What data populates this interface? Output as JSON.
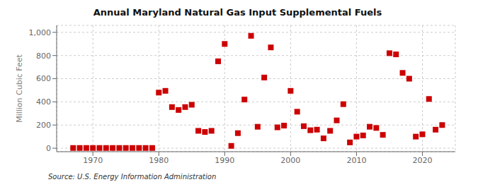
{
  "chart_data": {
    "type": "scatter",
    "title": "Annual Maryland Natural Gas Input Supplemental Fuels",
    "ylabel": "Million Cubic Feet",
    "annotations": [
      "Source: U.S. Energy Information Administration"
    ],
    "x": [
      1967,
      1968,
      1969,
      1970,
      1971,
      1972,
      1973,
      1974,
      1975,
      1976,
      1977,
      1978,
      1979,
      1980,
      1981,
      1982,
      1983,
      1984,
      1985,
      1986,
      1987,
      1988,
      1989,
      1990,
      1991,
      1992,
      1993,
      1994,
      1995,
      1996,
      1997,
      1998,
      1999,
      2000,
      2001,
      2002,
      2003,
      2004,
      2005,
      2006,
      2007,
      2008,
      2009,
      2010,
      2011,
      2012,
      2013,
      2014,
      2015,
      2016,
      2017,
      2018,
      2019,
      2020,
      2021,
      2022,
      2023
    ],
    "values": [
      2,
      2,
      2,
      2,
      2,
      2,
      2,
      2,
      2,
      2,
      2,
      2,
      2,
      480,
      495,
      355,
      330,
      355,
      375,
      150,
      140,
      150,
      750,
      900,
      20,
      130,
      420,
      970,
      185,
      610,
      870,
      180,
      195,
      495,
      315,
      190,
      155,
      160,
      85,
      150,
      240,
      380,
      50,
      100,
      110,
      185,
      175,
      115,
      820,
      810,
      650,
      600,
      100,
      120,
      425,
      160,
      200
    ],
    "color": "#cc0000",
    "marker": "square",
    "xlim": [
      1964.5,
      2025
    ],
    "ylim": [
      -30,
      1060
    ],
    "xticks": [
      1970,
      1980,
      1990,
      2000,
      2010,
      2020
    ],
    "yticks": [
      0,
      200,
      400,
      600,
      800,
      {
        "value": 1000,
        "label": "1,000"
      }
    ],
    "grid": true
  }
}
